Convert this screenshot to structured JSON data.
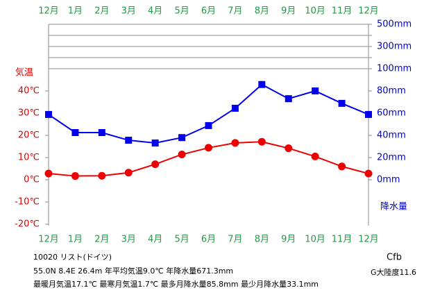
{
  "chart_data": {
    "type": "climograph",
    "categories": [
      "12月",
      "1月",
      "2月",
      "3月",
      "4月",
      "5月",
      "6月",
      "7月",
      "8月",
      "9月",
      "10月",
      "11月",
      "12月"
    ],
    "ylabel": "気温",
    "y2label": "降水量",
    "ylim": [
      -20,
      70
    ],
    "yticks": [
      {
        "value": -20,
        "label": "-20℃"
      },
      {
        "value": -10,
        "label": "-10℃"
      },
      {
        "value": 0,
        "label": "0℃"
      },
      {
        "value": 10,
        "label": "10℃"
      },
      {
        "value": 20,
        "label": "20℃"
      },
      {
        "value": 30,
        "label": "30℃"
      },
      {
        "value": 40,
        "label": "40℃"
      }
    ],
    "y2lim": [
      0,
      500
    ],
    "y2ticks": [
      {
        "value": 0,
        "label": "0mm"
      },
      {
        "value": 20,
        "label": "20mm"
      },
      {
        "value": 40,
        "label": "40mm"
      },
      {
        "value": 60,
        "label": "60mm"
      },
      {
        "value": 80,
        "label": "80mm"
      },
      {
        "value": 100,
        "label": "100mm"
      },
      {
        "value": 200,
        "label": null
      },
      {
        "value": 300,
        "label": "300mm"
      },
      {
        "value": 400,
        "label": null
      },
      {
        "value": 500,
        "label": "500mm"
      }
    ],
    "series": [
      {
        "name": "気温",
        "color": "#ee0000",
        "values": [
          2.8,
          1.7,
          1.8,
          3.2,
          7.0,
          11.4,
          14.4,
          16.6,
          17.1,
          14.2,
          10.5,
          6.0,
          2.8
        ]
      },
      {
        "name": "降水量",
        "color": "#0000ee",
        "axis": "y2",
        "values": [
          58.8,
          42.5,
          42.5,
          35.6,
          33.1,
          38.0,
          48.8,
          64.4,
          85.8,
          73.0,
          80.0,
          68.8,
          58.8
        ]
      }
    ],
    "info": [
      "10020 リスト(ドイツ)",
      "55.0N 8.4E 26.4m 年平均気温9.0℃ 年降水量671.3mm",
      "最暖月気温17.1℃ 最寒月気温1.7℃ 最多月降水量85.8mm 最少月降水量33.1mm"
    ],
    "climate": "Cfb",
    "continentality": "G大陸度11.6"
  }
}
